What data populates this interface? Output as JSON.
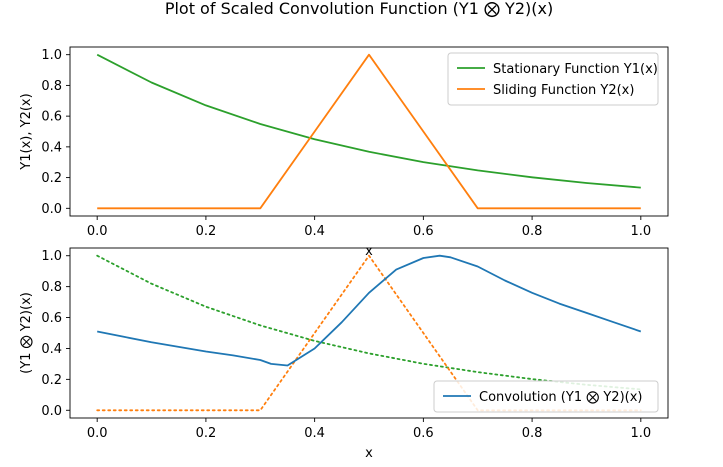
{
  "title": "Plot of Scaled Convolution Function (Y1 ⨂ Y2)(x)",
  "chart_data": [
    {
      "type": "line",
      "xlabel": "x",
      "ylabel": "Y1(x), Y2(x)",
      "xlim": [
        -0.05,
        1.05
      ],
      "ylim": [
        -0.05,
        1.05
      ],
      "xticks": [
        0.0,
        0.2,
        0.4,
        0.6,
        0.8,
        1.0
      ],
      "xtick_labels": [
        "0.0",
        "0.2",
        "0.4",
        "0.6",
        "0.8",
        "1.0"
      ],
      "yticks": [
        0.0,
        0.2,
        0.4,
        0.6,
        0.8,
        1.0
      ],
      "ytick_labels": [
        "0.0",
        "0.2",
        "0.4",
        "0.6",
        "0.8",
        "1.0"
      ],
      "grid": false,
      "legend_position": "top-right",
      "series": [
        {
          "name": "Stationary Function Y1(x)",
          "color": "#2ca02c",
          "style": "solid",
          "x": [
            0.0,
            0.1,
            0.2,
            0.3,
            0.4,
            0.5,
            0.6,
            0.7,
            0.8,
            0.9,
            1.0
          ],
          "y": [
            1.0,
            0.819,
            0.67,
            0.549,
            0.449,
            0.368,
            0.301,
            0.247,
            0.202,
            0.165,
            0.135
          ]
        },
        {
          "name": "Sliding Function Y2(x)",
          "color": "#ff7f0e",
          "style": "solid",
          "x": [
            0.0,
            0.3,
            0.5,
            0.7,
            1.0
          ],
          "y": [
            0.0,
            0.0,
            1.0,
            0.0,
            0.0
          ]
        }
      ]
    },
    {
      "type": "line",
      "xlabel": "x",
      "ylabel": "(Y1 ⨂ Y2)(x)",
      "xlim": [
        -0.05,
        1.05
      ],
      "ylim": [
        -0.05,
        1.05
      ],
      "xticks": [
        0.0,
        0.2,
        0.4,
        0.6,
        0.8,
        1.0
      ],
      "xtick_labels": [
        "0.0",
        "0.2",
        "0.4",
        "0.6",
        "0.8",
        "1.0"
      ],
      "yticks": [
        0.0,
        0.2,
        0.4,
        0.6,
        0.8,
        1.0
      ],
      "ytick_labels": [
        "0.0",
        "0.2",
        "0.4",
        "0.6",
        "0.8",
        "1.0"
      ],
      "grid": false,
      "legend_position": "bottom-right",
      "series": [
        {
          "color": "#2ca02c",
          "style": "dotted",
          "x": [
            0.0,
            0.1,
            0.2,
            0.3,
            0.4,
            0.5,
            0.6,
            0.7,
            0.8,
            0.9,
            1.0
          ],
          "y": [
            1.0,
            0.819,
            0.67,
            0.549,
            0.449,
            0.368,
            0.301,
            0.247,
            0.202,
            0.165,
            0.135
          ]
        },
        {
          "color": "#ff7f0e",
          "style": "dotted",
          "x": [
            0.0,
            0.3,
            0.5,
            0.7,
            1.0
          ],
          "y": [
            0.0,
            0.0,
            1.0,
            0.0,
            0.0
          ]
        },
        {
          "name": "Convolution (Y1 ⨂ Y2)(x)",
          "color": "#1f77b4",
          "style": "solid",
          "x": [
            0.0,
            0.05,
            0.1,
            0.15,
            0.2,
            0.25,
            0.3,
            0.32,
            0.35,
            0.4,
            0.45,
            0.5,
            0.55,
            0.6,
            0.63,
            0.65,
            0.7,
            0.75,
            0.8,
            0.85,
            0.9,
            0.95,
            1.0
          ],
          "y": [
            0.51,
            0.475,
            0.44,
            0.41,
            0.38,
            0.355,
            0.325,
            0.3,
            0.29,
            0.4,
            0.57,
            0.76,
            0.91,
            0.985,
            1.0,
            0.99,
            0.93,
            0.84,
            0.76,
            0.69,
            0.63,
            0.57,
            0.51
          ]
        }
      ]
    }
  ]
}
